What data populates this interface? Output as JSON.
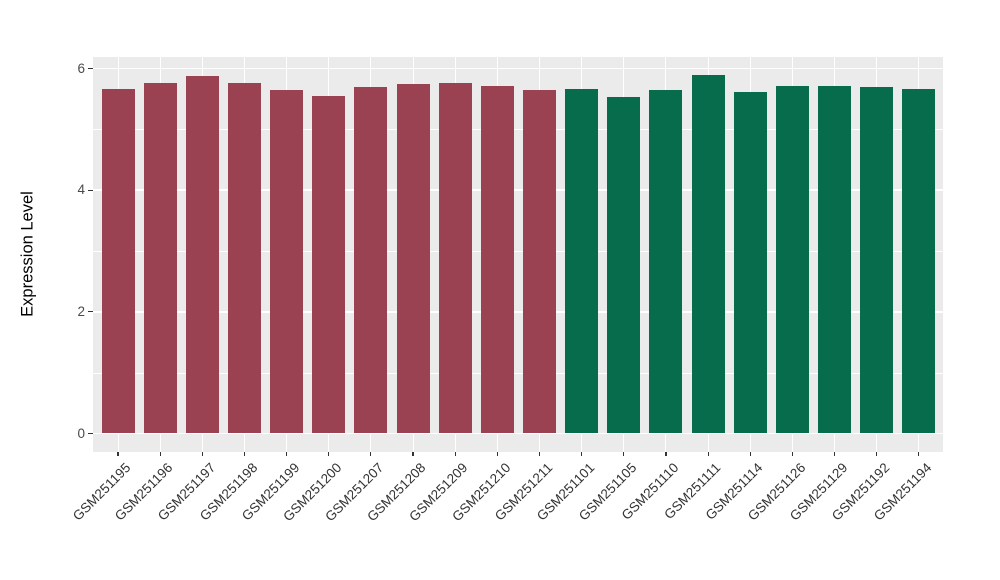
{
  "figure": {
    "background": "#FFFFFF",
    "panel_background": "#EBEBEB",
    "gridline_color": "#FFFFFF",
    "axis_text_color": "#4A4A4A",
    "axis_title_color": "#000000"
  },
  "chart_data": {
    "type": "bar",
    "title": "",
    "xlabel": "",
    "ylabel": "Expression Level",
    "ylim": [
      -0.3,
      6.2
    ],
    "yticks_major": [
      0,
      2,
      4,
      6
    ],
    "yticks_minor": [
      1,
      3,
      5
    ],
    "grid": "on",
    "legend_position": "none",
    "palette": {
      "maroon": "#9A4252",
      "green": "#076C4B"
    },
    "categories": [
      "GSM251195",
      "GSM251196",
      "GSM251197",
      "GSM251198",
      "GSM251199",
      "GSM251200",
      "GSM251207",
      "GSM251208",
      "GSM251209",
      "GSM251210",
      "GSM251211",
      "GSM251101",
      "GSM251105",
      "GSM251110",
      "GSM251111",
      "GSM251114",
      "GSM251126",
      "GSM251129",
      "GSM251192",
      "GSM251194"
    ],
    "series": [
      {
        "name": "maroon-group",
        "color": "#9A4252",
        "bars": [
          {
            "label": "GSM251195",
            "value": 5.66
          },
          {
            "label": "GSM251196",
            "value": 5.77
          },
          {
            "label": "GSM251197",
            "value": 5.88
          },
          {
            "label": "GSM251198",
            "value": 5.77
          },
          {
            "label": "GSM251199",
            "value": 5.65
          },
          {
            "label": "GSM251200",
            "value": 5.55
          },
          {
            "label": "GSM251207",
            "value": 5.7
          },
          {
            "label": "GSM251208",
            "value": 5.74
          },
          {
            "label": "GSM251209",
            "value": 5.76
          },
          {
            "label": "GSM251210",
            "value": 5.71
          },
          {
            "label": "GSM251211",
            "value": 5.65
          }
        ]
      },
      {
        "name": "green-group",
        "color": "#076C4B",
        "bars": [
          {
            "label": "GSM251101",
            "value": 5.67
          },
          {
            "label": "GSM251105",
            "value": 5.53
          },
          {
            "label": "GSM251110",
            "value": 5.64
          },
          {
            "label": "GSM251111",
            "value": 5.9
          },
          {
            "label": "GSM251114",
            "value": 5.62
          },
          {
            "label": "GSM251126",
            "value": 5.72
          },
          {
            "label": "GSM251129",
            "value": 5.71
          },
          {
            "label": "GSM251192",
            "value": 5.69
          },
          {
            "label": "GSM251194",
            "value": 5.66
          }
        ]
      }
    ]
  }
}
